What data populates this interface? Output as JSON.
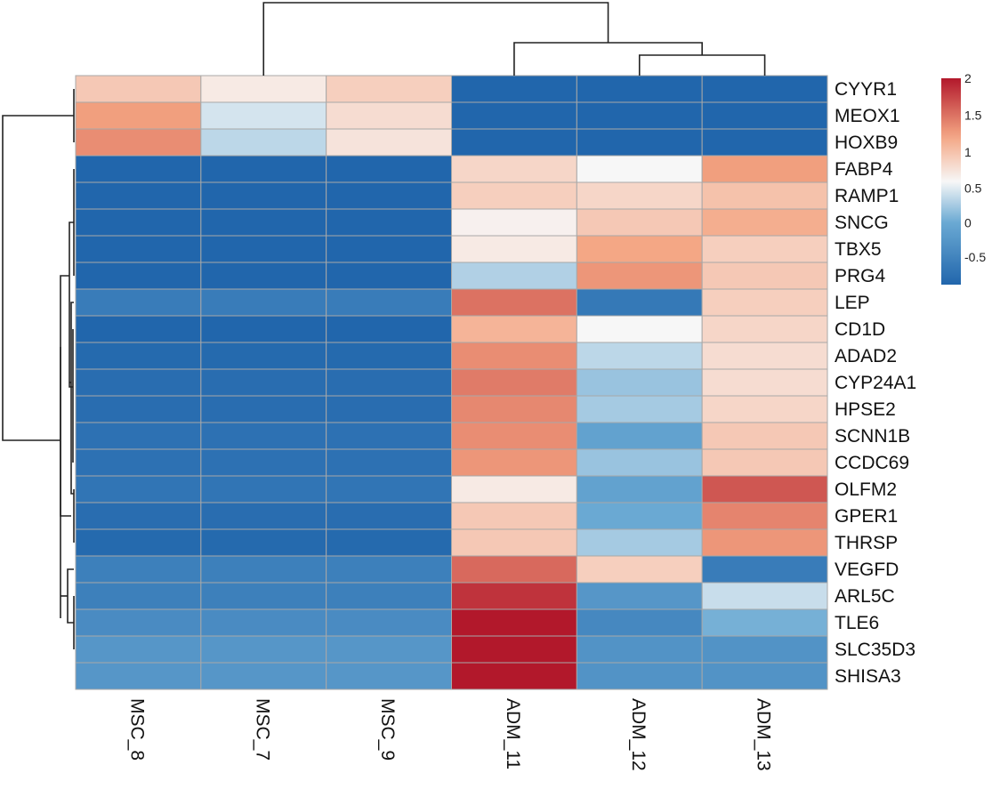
{
  "chart_data": {
    "type": "heatmap",
    "title": "",
    "columns": [
      "MSC_8",
      "MSC_7",
      "MSC_9",
      "ADM_11",
      "ADM_12",
      "ADM_13"
    ],
    "rows": [
      "CYYR1",
      "MEOX1",
      "HOXB9",
      "FABP4",
      "RAMP1",
      "SNCG",
      "TBX5",
      "PRG4",
      "LEP",
      "CD1D",
      "ADAD2",
      "CYP24A1",
      "HPSE2",
      "SCNN1B",
      "CCDC69",
      "OLFM2",
      "GPER1",
      "THRSP",
      "VEGFD",
      "ARL5C",
      "TLE6",
      "SLC35D3",
      "SHISA3"
    ],
    "values": [
      [
        0.95,
        0.7,
        0.9,
        -0.9,
        -0.9,
        -0.9
      ],
      [
        1.25,
        0.45,
        0.8,
        -0.9,
        -0.9,
        -0.9
      ],
      [
        1.35,
        0.35,
        0.75,
        -0.9,
        -0.9,
        -0.9
      ],
      [
        -0.9,
        -0.9,
        -0.9,
        0.85,
        0.6,
        1.25
      ],
      [
        -0.9,
        -0.9,
        -0.9,
        0.9,
        0.85,
        1.0
      ],
      [
        -0.9,
        -0.9,
        -0.9,
        0.65,
        0.95,
        1.15
      ],
      [
        -0.9,
        -0.9,
        -0.9,
        0.7,
        1.2,
        0.9
      ],
      [
        -0.9,
        -0.9,
        -0.9,
        0.3,
        1.3,
        0.95
      ],
      [
        -0.6,
        -0.6,
        -0.6,
        1.5,
        -0.65,
        0.9
      ],
      [
        -0.9,
        -0.9,
        -0.9,
        1.1,
        0.6,
        0.85
      ],
      [
        -0.85,
        -0.85,
        -0.85,
        1.35,
        0.35,
        0.8
      ],
      [
        -0.8,
        -0.8,
        -0.8,
        1.45,
        0.2,
        0.8
      ],
      [
        -0.8,
        -0.8,
        -0.8,
        1.38,
        0.25,
        0.85
      ],
      [
        -0.75,
        -0.75,
        -0.75,
        1.35,
        -0.1,
        0.95
      ],
      [
        -0.75,
        -0.75,
        -0.75,
        1.3,
        0.2,
        0.95
      ],
      [
        -0.7,
        -0.7,
        -0.7,
        0.7,
        -0.1,
        1.65
      ],
      [
        -0.8,
        -0.8,
        -0.8,
        0.95,
        0.0,
        1.4
      ],
      [
        -0.85,
        -0.85,
        -0.85,
        0.95,
        0.25,
        1.3
      ],
      [
        -0.55,
        -0.55,
        -0.55,
        1.55,
        0.9,
        -0.6
      ],
      [
        -0.55,
        -0.55,
        -0.55,
        1.85,
        -0.25,
        0.4
      ],
      [
        -0.4,
        -0.4,
        -0.4,
        2.0,
        -0.45,
        0.05
      ],
      [
        -0.25,
        -0.25,
        -0.25,
        2.0,
        -0.3,
        -0.3
      ],
      [
        -0.25,
        -0.25,
        -0.25,
        2.0,
        -0.3,
        -0.3
      ]
    ],
    "colorbar": {
      "range": [
        -0.9,
        2.0
      ],
      "ticks": [
        -0.5,
        0,
        0.5,
        1,
        1.5,
        2
      ],
      "tick_labels": [
        "-0.5",
        "0",
        "0.5",
        "1",
        "1.5",
        "2"
      ],
      "colors": {
        "low": "#2166ac",
        "mid_low": "#6aa9d3",
        "mid": "#f7f7f7",
        "mid_high": "#f4a582",
        "high": "#b2182b"
      },
      "placement": "top-right"
    },
    "column_dendrogram": {
      "clusters": "((MSC_8, MSC_7, MSC_9), (ADM_11, (ADM_12, ADM_13)))"
    },
    "row_dendrogram": {
      "clusters": "((CYYR1, MEOX1, HOXB9), (FABP4 ... THRSP), (VEGFD, ARL5C, TLE6, SLC35D3, SHISA3))"
    },
    "xlabel": "",
    "ylabel": "",
    "grid": true
  }
}
